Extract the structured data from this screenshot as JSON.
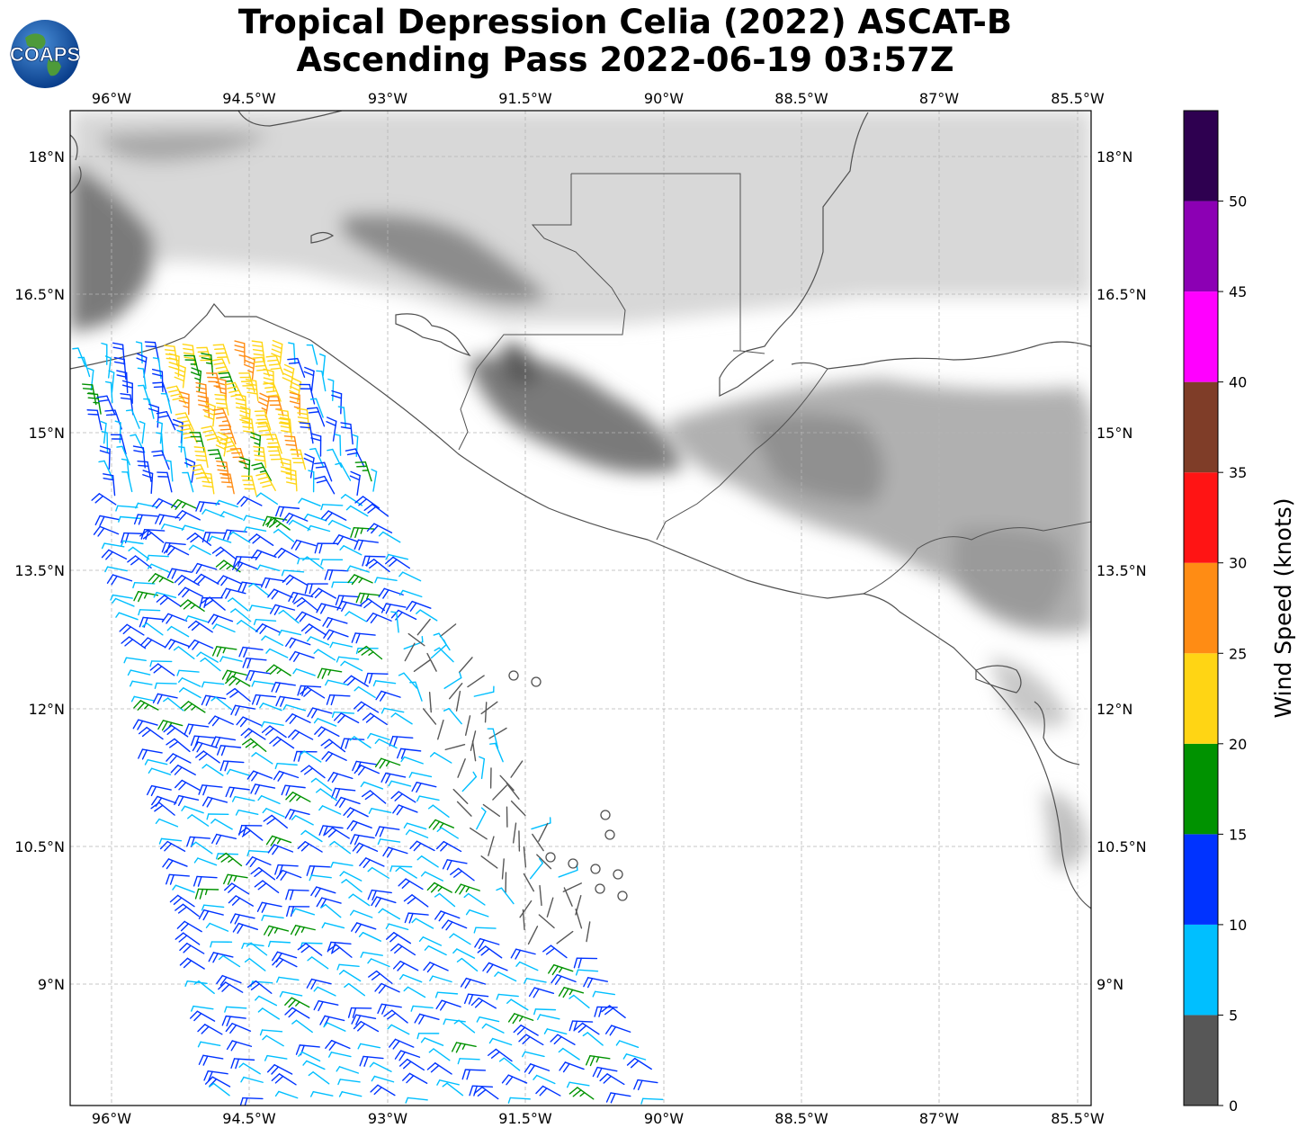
{
  "title": {
    "line1": "Tropical Depression Celia (2022) ASCAT-B",
    "line2": "Ascending Pass 2022-06-19 03:57Z"
  },
  "logo": {
    "text": "COAPS",
    "icon": "globe-logo"
  },
  "map": {
    "lon_range": [
      -96.45,
      -85.35
    ],
    "lat_range": [
      7.7,
      18.5
    ],
    "lon_ticks": [
      "96°W",
      "94.5°W",
      "93°W",
      "91.5°W",
      "90°W",
      "88.5°W",
      "87°W",
      "85.5°W"
    ],
    "lat_ticks": [
      "18°N",
      "16.5°N",
      "15°N",
      "13.5°N",
      "12°N",
      "10.5°N",
      "9°N"
    ],
    "gridlines": true,
    "background": "grayscale terrain"
  },
  "colorbar": {
    "label": "Wind Speed (knots)",
    "ticks": [
      "0",
      "5",
      "10",
      "15",
      "20",
      "25",
      "30",
      "35",
      "40",
      "45",
      "50"
    ],
    "bins": [
      {
        "range": [
          0,
          5
        ],
        "color": "#575757"
      },
      {
        "range": [
          5,
          10
        ],
        "color": "#00bfff"
      },
      {
        "range": [
          10,
          15
        ],
        "color": "#0033ff"
      },
      {
        "range": [
          15,
          20
        ],
        "color": "#009200"
      },
      {
        "range": [
          20,
          25
        ],
        "color": "#ffd514"
      },
      {
        "range": [
          25,
          30
        ],
        "color": "#ff8c14"
      },
      {
        "range": [
          30,
          35
        ],
        "color": "#ff1414"
      },
      {
        "range": [
          35,
          40
        ],
        "color": "#7f3d28"
      },
      {
        "range": [
          40,
          45
        ],
        "color": "#ff00ff"
      },
      {
        "range": [
          45,
          50
        ],
        "color": "#8c00b4"
      },
      {
        "range": [
          50,
          55
        ],
        "color": "#2e0050"
      }
    ]
  }
}
